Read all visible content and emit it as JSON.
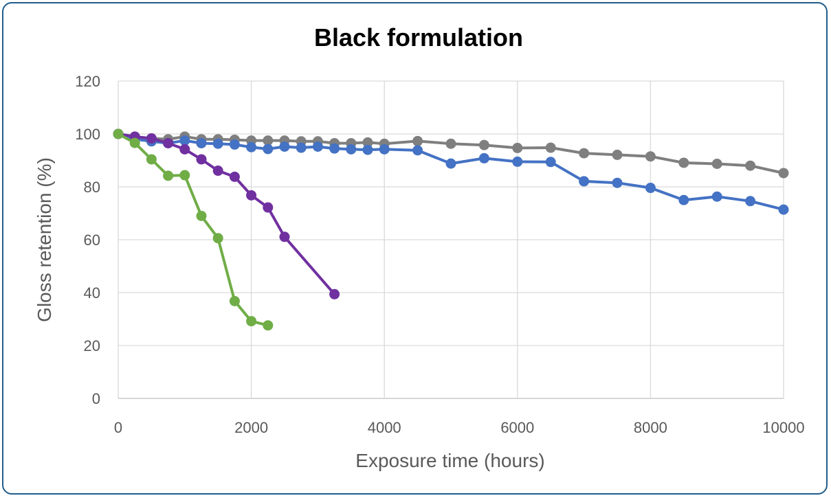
{
  "chart_data": {
    "type": "line",
    "title": "Black formulation",
    "xlabel": "Exposure time (hours)",
    "ylabel": "Gloss retention (%)",
    "xlim": [
      0,
      10000
    ],
    "ylim": [
      0,
      120
    ],
    "x_ticks": [
      "0",
      "2000",
      "4000",
      "6000",
      "8000",
      "10000"
    ],
    "y_ticks": [
      "0",
      "20",
      "40",
      "60",
      "80",
      "100",
      "120"
    ],
    "grid": true,
    "legend": "none",
    "series": [
      {
        "color": "#7f7f7f",
        "x": [
          0,
          250,
          500,
          750,
          1000,
          1250,
          1500,
          1750,
          2000,
          2250,
          2500,
          2750,
          3000,
          3250,
          3500,
          3750,
          4000,
          4500,
          5000,
          5500,
          6000,
          6500,
          7000,
          7500,
          8000,
          8500,
          9000,
          9500,
          10000
        ],
        "y": [
          100,
          98.5,
          98.3,
          98,
          99,
          98,
          98,
          97.8,
          97.5,
          97.5,
          97.5,
          97.2,
          97.2,
          96.5,
          96.5,
          96.8,
          96.3,
          97.3,
          96.3,
          95.8,
          94.7,
          94.8,
          92.7,
          92.1,
          91.5,
          89.1,
          88.7,
          88,
          85.2
        ]
      },
      {
        "color": "#4472c4",
        "x": [
          0,
          250,
          500,
          750,
          1000,
          1250,
          1500,
          1750,
          2000,
          2250,
          2500,
          2750,
          3000,
          3250,
          3500,
          3750,
          4000,
          4500,
          5000,
          5500,
          6000,
          6500,
          7000,
          7500,
          8000,
          8500,
          9000,
          9500,
          10000
        ],
        "y": [
          100,
          98,
          97.2,
          96.5,
          97.5,
          96.5,
          96.3,
          96,
          95,
          94.3,
          95.2,
          94.8,
          95.2,
          94.5,
          94.2,
          94,
          94.2,
          93.8,
          88.8,
          90.8,
          89.5,
          89.4,
          82.1,
          81.5,
          79.6,
          75,
          76.3,
          74.6,
          71.4
        ]
      },
      {
        "color": "#7030a0",
        "x": [
          0,
          250,
          500,
          750,
          1000,
          1250,
          1500,
          1750,
          2000,
          2250,
          2500,
          3250
        ],
        "y": [
          100,
          99,
          98.3,
          96.5,
          94.2,
          90.4,
          86.1,
          83.8,
          76.8,
          72.2,
          61.1,
          39.4
        ]
      },
      {
        "color": "#70ad47",
        "x": [
          0,
          250,
          500,
          750,
          1000,
          1250,
          1500,
          1750,
          2000,
          2250
        ],
        "y": [
          100,
          96.6,
          90.4,
          84.2,
          84.4,
          69,
          60.6,
          36.8,
          29.2,
          27.6
        ]
      }
    ]
  }
}
